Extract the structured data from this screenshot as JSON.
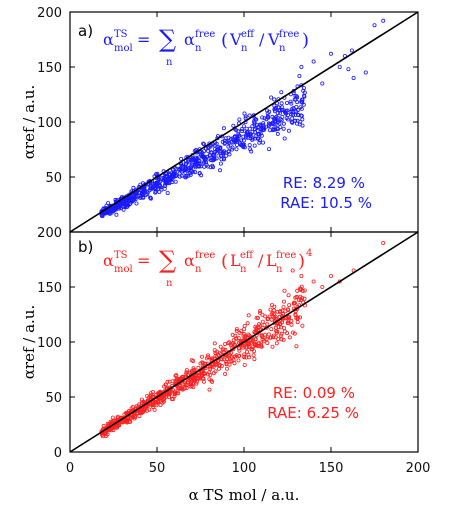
{
  "chart_data": [
    {
      "type": "scatter",
      "panel_label": "a)",
      "formula": {
        "lhs": "α",
        "lhs_sup": "TS",
        "lhs_sub": "mol",
        "eq": "=",
        "sum": "∑",
        "sum_sub": "n",
        "rhs": "α",
        "rhs_sup": "free",
        "rhs_sub": "n",
        "paren_open": "(",
        "v1": "V",
        "v1_sup": "eff",
        "v1_sub": "n",
        "slash": "/",
        "v2": "V",
        "v2_sup": "free",
        "v2_sub": "n",
        "paren_close": ")",
        "power": ""
      },
      "stats": {
        "re": "RE: 8.29 %",
        "rae": "RAE: 10.5 %"
      },
      "color": "#1a1aff",
      "xlim": [
        0,
        200
      ],
      "ylim": [
        0,
        200
      ],
      "xticks": [
        0,
        50,
        100,
        150,
        200
      ],
      "yticks": [
        0,
        50,
        100,
        150,
        200
      ],
      "xlabel": "",
      "ylabel": "αref / a.u.",
      "show_x_tick_labels": false,
      "show_y_zero_label": false,
      "trend": {
        "slope": 0.86,
        "intercept": 1.0,
        "spread": 0.09,
        "seed": 11
      },
      "x_range": [
        18,
        135
      ],
      "n_points": 780,
      "outliers": [
        [
          175,
          188
        ],
        [
          180,
          192
        ],
        [
          163,
          140
        ],
        [
          160,
          148
        ],
        [
          158,
          160
        ],
        [
          162,
          165
        ],
        [
          155,
          150
        ],
        [
          150,
          162
        ],
        [
          145,
          135
        ],
        [
          140,
          155
        ],
        [
          133,
          150
        ],
        [
          170,
          145
        ]
      ],
      "reference_line": [
        [
          0,
          0
        ],
        [
          200,
          200
        ]
      ]
    },
    {
      "type": "scatter",
      "panel_label": "b)",
      "formula": {
        "lhs": "α",
        "lhs_sup": "TS",
        "lhs_sub": "mol",
        "eq": "=",
        "sum": "∑",
        "sum_sub": "n",
        "rhs": "α",
        "rhs_sup": "free",
        "rhs_sub": "n",
        "paren_open": "(",
        "v1": "L",
        "v1_sup": "eff",
        "v1_sub": "n",
        "slash": "/",
        "v2": "L",
        "v2_sup": "free",
        "v2_sub": "n",
        "paren_close": ")",
        "power": "4"
      },
      "stats": {
        "re": "RE: 0.09 %",
        "rae": "RAE: 6.25 %"
      },
      "color": "#ff2020",
      "xlim": [
        0,
        200
      ],
      "ylim": [
        0,
        200
      ],
      "xticks": [
        0,
        50,
        100,
        150,
        200
      ],
      "yticks": [
        0,
        50,
        100,
        150,
        200
      ],
      "xlabel": "α TS mol / a.u.",
      "ylabel": "αref / a.u.",
      "show_x_tick_labels": true,
      "show_y_zero_label": true,
      "trend": {
        "slope": 0.98,
        "intercept": 0.0,
        "spread": 0.08,
        "seed": 29
      },
      "x_range": [
        18,
        135
      ],
      "n_points": 780,
      "outliers": [
        [
          180,
          190
        ],
        [
          163,
          165
        ],
        [
          150,
          160
        ],
        [
          155,
          155
        ],
        [
          133,
          160
        ],
        [
          145,
          150
        ],
        [
          140,
          155
        ],
        [
          128,
          165
        ]
      ],
      "reference_line": [
        [
          0,
          0
        ],
        [
          200,
          200
        ]
      ]
    }
  ]
}
